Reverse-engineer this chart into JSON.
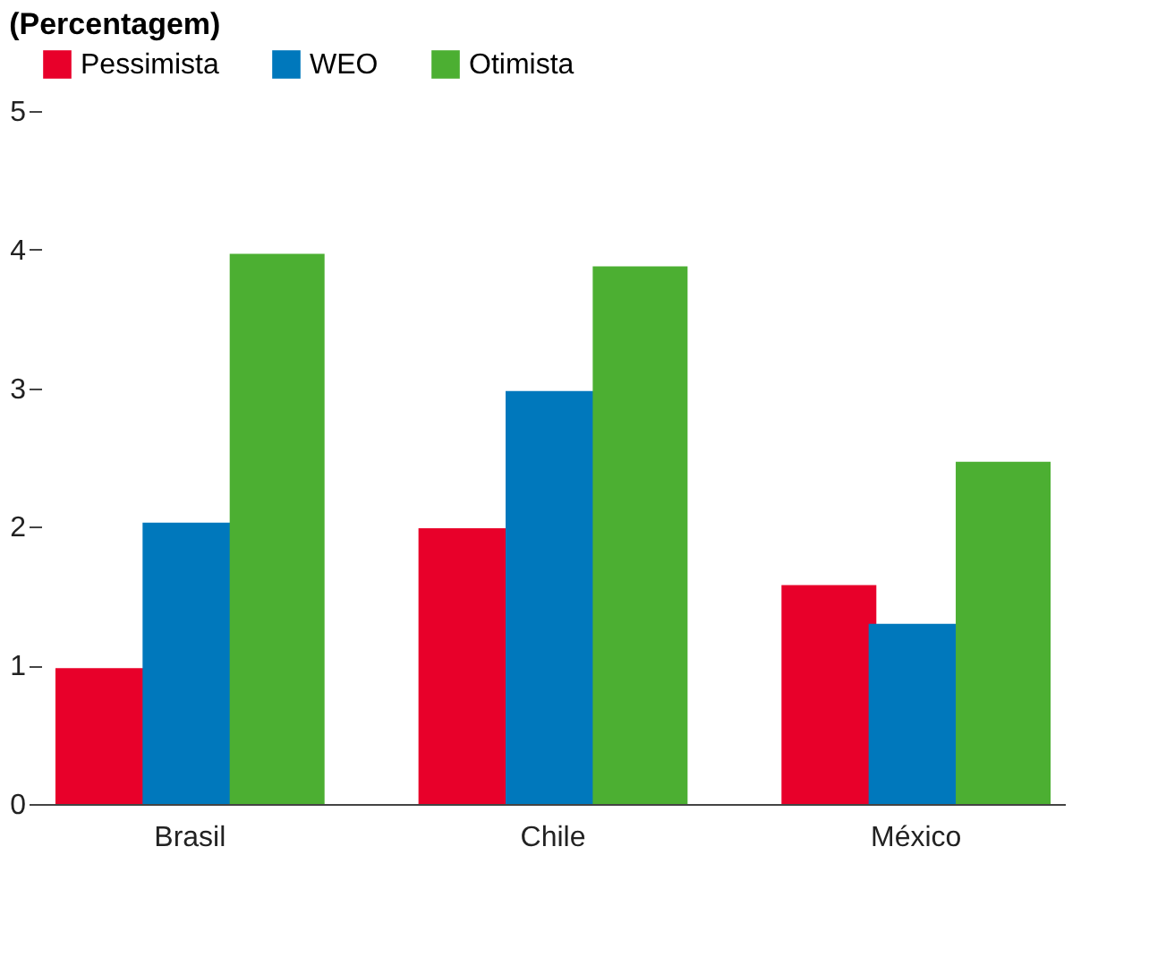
{
  "chart_data": {
    "type": "bar",
    "title": "(Percentagem)",
    "categories": [
      "Brasil",
      "Chile",
      "México"
    ],
    "series": [
      {
        "name": "Pessimista",
        "color": "#e8002a",
        "values": [
          0.98,
          1.99,
          1.58
        ]
      },
      {
        "name": "WEO",
        "color": "#0078bc",
        "values": [
          2.03,
          2.98,
          1.3
        ]
      },
      {
        "name": "Otimista",
        "color": "#4caf32",
        "values": [
          3.97,
          3.88,
          2.47
        ]
      }
    ],
    "ylim": [
      0,
      5
    ],
    "yticks": [
      0,
      1,
      2,
      3,
      4,
      5
    ],
    "grid": false,
    "legend": "top"
  }
}
